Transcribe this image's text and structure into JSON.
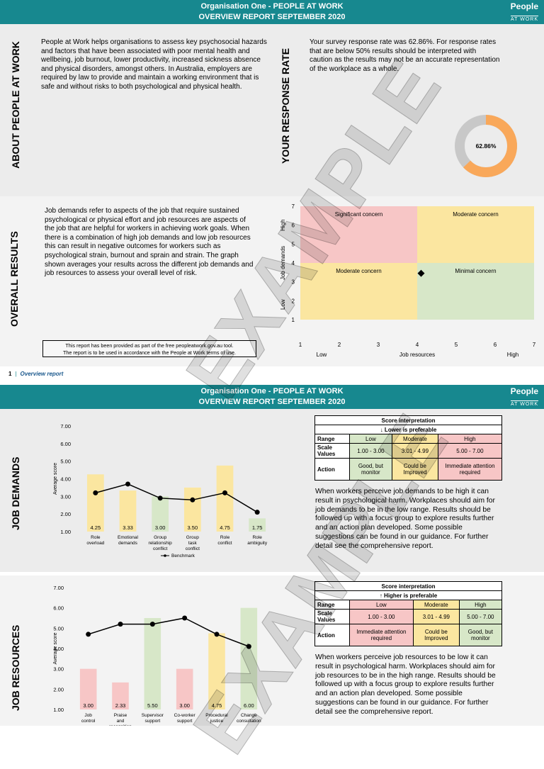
{
  "header": {
    "org_title": "Organisation One - PEOPLE AT WORK",
    "report_title": "OVERVIEW REPORT SEPTEMBER 2020"
  },
  "logo": {
    "line1": "People",
    "line2": "AT WORK"
  },
  "about": {
    "label": "ABOUT PEOPLE AT WORK",
    "text": "People at Work helps organisations to assess key psychosocial hazards and factors that have been associated with poor mental health and wellbeing, job burnout, lower productivity, increased sickness absence and physical disorders, amongst others. In Australia, employers are required by law to provide and maintain a working environment that is safe and without risks to both psychological and physical health."
  },
  "response": {
    "label": "YOUR RESPONSE RATE",
    "text": "Your survey response rate was 62.86%. For response rates that are below 50% results should be interpreted with caution as the results may not be an accurate representation of the workplace as a whole.",
    "rate_label": "62.86%",
    "rate": 62.86,
    "colors": {
      "fill": "#f9a85a",
      "rest": "#c8c8c8"
    }
  },
  "overall": {
    "label": "OVERALL RESULTS",
    "text": "Job demands refer to aspects of the job that require sustained psychological or physical effort and job resources are aspects of the job that are helpful for workers in achieving work goals. When there is a combination of high job demands and low job resources this can result in negative outcomes for workers such as psychological strain, burnout and sprain and strain. The graph shown averages your results across the different job demands and job resources to assess your overall level of risk.",
    "notice_line1": "This report has been provided as part of the free peopleatwork.gov.au tool.",
    "notice_line2": "The report is to be used in accordance with the People at Work terms of use."
  },
  "footer": {
    "page": "1",
    "label": "Overview report"
  },
  "watermark": "EXAMPLE",
  "chart_data": [
    {
      "type": "scatter",
      "xlabel": "Job resources",
      "ylabel": "Job demands",
      "xlim": [
        1,
        7
      ],
      "ylim": [
        1,
        7
      ],
      "x_ticks": [
        "1",
        "2",
        "3",
        "4",
        "5",
        "6",
        "7"
      ],
      "y_ticks": [
        "1",
        "2",
        "3",
        "4",
        "5",
        "6",
        "7"
      ],
      "x_low": "Low",
      "x_high": "High",
      "y_low": "Low",
      "y_high": "High",
      "quadrants": [
        {
          "label": "Significant concern",
          "x": [
            1,
            4
          ],
          "y": [
            4,
            7
          ],
          "color": "#f7c6c6"
        },
        {
          "label": "Moderate concern",
          "x": [
            4,
            7
          ],
          "y": [
            4,
            7
          ],
          "color": "#fbe6a0"
        },
        {
          "label": "Moderate concern",
          "x": [
            1,
            4
          ],
          "y": [
            1,
            4
          ],
          "color": "#fbe6a0"
        },
        {
          "label": "Minimal concern",
          "x": [
            4,
            7
          ],
          "y": [
            1,
            4
          ],
          "color": "#d7e7c8"
        }
      ],
      "points": [
        {
          "x": 4.1,
          "y": 3.45
        }
      ]
    },
    {
      "type": "bar",
      "title": "JOB DEMANDS",
      "ylabel": "Average score",
      "ylim": [
        1,
        7
      ],
      "y_ticks": [
        "1.00",
        "2.00",
        "3.00",
        "4.00",
        "5.00",
        "6.00",
        "7.00"
      ],
      "categories": [
        "Role overload",
        "Emotional demands",
        "Group relationship conflict",
        "Group task conflict",
        "Role conflict",
        "Role ambiguity"
      ],
      "values": [
        4.25,
        3.33,
        3.0,
        3.5,
        4.75,
        1.75
      ],
      "value_labels": [
        "4.25",
        "3.33",
        "3.00",
        "3.50",
        "4.75",
        "1.75"
      ],
      "bar_colors": [
        "#fbe6a0",
        "#fbe6a0",
        "#d7e7c8",
        "#fbe6a0",
        "#fbe6a0",
        "#d7e7c8"
      ],
      "benchmark_label": "Benchmark",
      "benchmark": [
        3.2,
        3.7,
        2.9,
        2.8,
        3.2,
        2.1
      ]
    },
    {
      "type": "bar",
      "title": "JOB RESOURCES",
      "ylabel": "Average score",
      "ylim": [
        1,
        7
      ],
      "y_ticks": [
        "1.00",
        "2.00",
        "3.00",
        "4.00",
        "5.00",
        "6.00",
        "7.00"
      ],
      "categories": [
        "Job control",
        "Praise and recognition",
        "Supervisor support",
        "Co-worker support",
        "Procedural justice",
        "Change consultation"
      ],
      "values": [
        3.0,
        2.33,
        5.5,
        3.0,
        4.75,
        6.0
      ],
      "value_labels": [
        "3.00",
        "2.33",
        "5.50",
        "3.00",
        "4.75",
        "6.00"
      ],
      "bar_colors": [
        "#f7c6c6",
        "#f7c6c6",
        "#d7e7c8",
        "#f7c6c6",
        "#fbe6a0",
        "#d7e7c8"
      ],
      "benchmark": [
        4.7,
        5.2,
        5.2,
        5.5,
        4.7,
        4.1
      ]
    }
  ],
  "demands": {
    "label": "JOB DEMANDS",
    "table": {
      "title": "Score interpretation",
      "subtitle": "↓ Lower is preferable",
      "range_label": "Range",
      "scale_label": "Scale Values",
      "action_label": "Action",
      "ranges": [
        "Low",
        "Moderate",
        "High"
      ],
      "scales": [
        "1.00 - 3.00",
        "3.01 - 4.99",
        "5.00 - 7.00"
      ],
      "actions": [
        "Good, but monitor",
        "Could be Improved",
        "Immediate attention required"
      ]
    },
    "text": "When workers perceive job demands to be high it can result in psychological harm. Workplaces should aim for job demands to be in the low range. Results should be followed up with a focus group to explore results further and an action plan developed. Some possible suggestions can be found in our guidance. For further detail see the comprehensive report."
  },
  "resources": {
    "label": "JOB RESOURCES",
    "table": {
      "title": "Score interpretation",
      "subtitle": "↑ Higher is preferable",
      "range_label": "Range",
      "scale_label": "Scale Values",
      "action_label": "Action",
      "ranges": [
        "Low",
        "Moderate",
        "High"
      ],
      "scales": [
        "1.00 - 3.00",
        "3.01 - 4.99",
        "5.00 - 7.00"
      ],
      "actions": [
        "Immediate attention required",
        "Could be Improved",
        "Good, but monitor"
      ]
    },
    "text": "When workers perceive job resources to be low it can result in psychological harm. Workplaces should aim for job resources to be in the high range. Results should be followed up with a focus group to explore results further and an action plan developed. Some possible suggestions can be found in our guidance. For further detail see the comprehensive report."
  }
}
